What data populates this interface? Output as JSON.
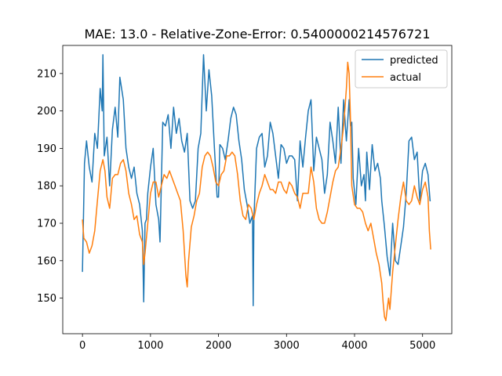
{
  "chart_data": {
    "type": "line",
    "title": "MAE: 13.0 - Relative-Zone-Error: 0.5400000214576721",
    "xlabel": "",
    "ylabel": "",
    "xlim": [
      -290,
      5430
    ],
    "ylim": [
      140.5,
      217.5
    ],
    "x_ticks": [
      0,
      1000,
      2000,
      3000,
      4000,
      5000
    ],
    "y_ticks": [
      150,
      160,
      170,
      180,
      190,
      200,
      210
    ],
    "grid": false,
    "legend_position": "upper-right",
    "series": [
      {
        "name": "predicted",
        "color": "#1f77b4",
        "points": [
          [
            0,
            157
          ],
          [
            30,
            186
          ],
          [
            60,
            192
          ],
          [
            100,
            185
          ],
          [
            140,
            181
          ],
          [
            180,
            194
          ],
          [
            220,
            190
          ],
          [
            260,
            206
          ],
          [
            290,
            200
          ],
          [
            300,
            215
          ],
          [
            320,
            188
          ],
          [
            360,
            193
          ],
          [
            400,
            180
          ],
          [
            440,
            195
          ],
          [
            480,
            201
          ],
          [
            520,
            193
          ],
          [
            550,
            209
          ],
          [
            600,
            203
          ],
          [
            640,
            190
          ],
          [
            680,
            185
          ],
          [
            720,
            182
          ],
          [
            760,
            185
          ],
          [
            800,
            178
          ],
          [
            840,
            175
          ],
          [
            880,
            168
          ],
          [
            900,
            149
          ],
          [
            920,
            170
          ],
          [
            940,
            171
          ],
          [
            960,
            178
          ],
          [
            1000,
            185
          ],
          [
            1040,
            190
          ],
          [
            1080,
            175
          ],
          [
            1120,
            171
          ],
          [
            1140,
            165
          ],
          [
            1180,
            197
          ],
          [
            1220,
            196
          ],
          [
            1260,
            199
          ],
          [
            1300,
            190
          ],
          [
            1340,
            201
          ],
          [
            1380,
            194
          ],
          [
            1420,
            198
          ],
          [
            1460,
            192
          ],
          [
            1500,
            189
          ],
          [
            1540,
            194
          ],
          [
            1580,
            176
          ],
          [
            1620,
            174
          ],
          [
            1660,
            176
          ],
          [
            1700,
            190
          ],
          [
            1740,
            194
          ],
          [
            1780,
            215
          ],
          [
            1820,
            200
          ],
          [
            1860,
            211
          ],
          [
            1900,
            204
          ],
          [
            1940,
            190
          ],
          [
            1980,
            177
          ],
          [
            2000,
            177
          ],
          [
            2020,
            191
          ],
          [
            2060,
            190
          ],
          [
            2100,
            187
          ],
          [
            2140,
            192
          ],
          [
            2180,
            198
          ],
          [
            2220,
            201
          ],
          [
            2260,
            199
          ],
          [
            2300,
            192
          ],
          [
            2340,
            187
          ],
          [
            2380,
            179
          ],
          [
            2420,
            175
          ],
          [
            2460,
            170
          ],
          [
            2500,
            172
          ],
          [
            2510,
            148
          ],
          [
            2520,
            171
          ],
          [
            2560,
            190
          ],
          [
            2600,
            193
          ],
          [
            2640,
            194
          ],
          [
            2680,
            185
          ],
          [
            2720,
            188
          ],
          [
            2760,
            197
          ],
          [
            2800,
            194
          ],
          [
            2840,
            188
          ],
          [
            2880,
            182
          ],
          [
            2920,
            191
          ],
          [
            2960,
            190
          ],
          [
            3000,
            186
          ],
          [
            3040,
            188
          ],
          [
            3080,
            188
          ],
          [
            3120,
            187
          ],
          [
            3160,
            176
          ],
          [
            3200,
            192
          ],
          [
            3240,
            185
          ],
          [
            3280,
            193
          ],
          [
            3320,
            200
          ],
          [
            3360,
            203
          ],
          [
            3400,
            184
          ],
          [
            3440,
            193
          ],
          [
            3480,
            190
          ],
          [
            3520,
            187
          ],
          [
            3560,
            178
          ],
          [
            3600,
            183
          ],
          [
            3640,
            197
          ],
          [
            3680,
            192
          ],
          [
            3720,
            186
          ],
          [
            3760,
            201
          ],
          [
            3800,
            186
          ],
          [
            3840,
            203
          ],
          [
            3880,
            192
          ],
          [
            3920,
            203
          ],
          [
            3940,
            196
          ],
          [
            3960,
            197
          ],
          [
            3980,
            182
          ],
          [
            4020,
            175
          ],
          [
            4060,
            190
          ],
          [
            4100,
            180
          ],
          [
            4140,
            183
          ],
          [
            4160,
            176
          ],
          [
            4180,
            189
          ],
          [
            4220,
            179
          ],
          [
            4260,
            191
          ],
          [
            4300,
            184
          ],
          [
            4340,
            186
          ],
          [
            4380,
            182
          ],
          [
            4400,
            176
          ],
          [
            4440,
            169
          ],
          [
            4480,
            161
          ],
          [
            4520,
            156
          ],
          [
            4560,
            170
          ],
          [
            4600,
            160
          ],
          [
            4640,
            159
          ],
          [
            4680,
            164
          ],
          [
            4720,
            169
          ],
          [
            4760,
            178
          ],
          [
            4800,
            192
          ],
          [
            4840,
            193
          ],
          [
            4880,
            187
          ],
          [
            4920,
            189
          ],
          [
            4960,
            176
          ],
          [
            5000,
            184
          ],
          [
            5040,
            186
          ],
          [
            5080,
            183
          ],
          [
            5110,
            176
          ],
          [
            5120,
            176
          ]
        ]
      },
      {
        "name": "actual",
        "color": "#ff7f0e",
        "points": [
          [
            0,
            171
          ],
          [
            20,
            166
          ],
          [
            60,
            165
          ],
          [
            100,
            162
          ],
          [
            140,
            164
          ],
          [
            180,
            168
          ],
          [
            220,
            176
          ],
          [
            260,
            184
          ],
          [
            300,
            187
          ],
          [
            330,
            184
          ],
          [
            360,
            177
          ],
          [
            400,
            174
          ],
          [
            440,
            182
          ],
          [
            480,
            183
          ],
          [
            520,
            183
          ],
          [
            560,
            186
          ],
          [
            600,
            187
          ],
          [
            640,
            184
          ],
          [
            680,
            178
          ],
          [
            720,
            175
          ],
          [
            760,
            171
          ],
          [
            800,
            172
          ],
          [
            840,
            167
          ],
          [
            880,
            165
          ],
          [
            900,
            159
          ],
          [
            920,
            162
          ],
          [
            960,
            170
          ],
          [
            1000,
            178
          ],
          [
            1040,
            181
          ],
          [
            1080,
            181
          ],
          [
            1120,
            177
          ],
          [
            1160,
            180
          ],
          [
            1200,
            183
          ],
          [
            1240,
            182
          ],
          [
            1280,
            184
          ],
          [
            1320,
            182
          ],
          [
            1360,
            180
          ],
          [
            1400,
            178
          ],
          [
            1440,
            176
          ],
          [
            1480,
            168
          ],
          [
            1520,
            156
          ],
          [
            1540,
            153
          ],
          [
            1560,
            160
          ],
          [
            1600,
            169
          ],
          [
            1640,
            172
          ],
          [
            1680,
            176
          ],
          [
            1720,
            178
          ],
          [
            1760,
            185
          ],
          [
            1800,
            188
          ],
          [
            1840,
            189
          ],
          [
            1880,
            188
          ],
          [
            1920,
            185
          ],
          [
            1960,
            181
          ],
          [
            2000,
            180
          ],
          [
            2040,
            183
          ],
          [
            2080,
            184
          ],
          [
            2120,
            188
          ],
          [
            2160,
            188
          ],
          [
            2200,
            189
          ],
          [
            2240,
            188
          ],
          [
            2280,
            183
          ],
          [
            2320,
            176
          ],
          [
            2360,
            172
          ],
          [
            2400,
            171
          ],
          [
            2440,
            175
          ],
          [
            2480,
            174
          ],
          [
            2520,
            171
          ],
          [
            2560,
            175
          ],
          [
            2600,
            178
          ],
          [
            2640,
            180
          ],
          [
            2680,
            183
          ],
          [
            2720,
            181
          ],
          [
            2760,
            179
          ],
          [
            2800,
            179
          ],
          [
            2840,
            178
          ],
          [
            2880,
            181
          ],
          [
            2920,
            181
          ],
          [
            2960,
            179
          ],
          [
            3000,
            178
          ],
          [
            3040,
            181
          ],
          [
            3080,
            180
          ],
          [
            3120,
            178
          ],
          [
            3160,
            177
          ],
          [
            3200,
            174
          ],
          [
            3240,
            178
          ],
          [
            3280,
            178
          ],
          [
            3320,
            178
          ],
          [
            3360,
            185
          ],
          [
            3400,
            181
          ],
          [
            3440,
            174
          ],
          [
            3480,
            171
          ],
          [
            3520,
            170
          ],
          [
            3560,
            170
          ],
          [
            3600,
            173
          ],
          [
            3640,
            177
          ],
          [
            3680,
            181
          ],
          [
            3720,
            184
          ],
          [
            3760,
            185
          ],
          [
            3800,
            190
          ],
          [
            3840,
            196
          ],
          [
            3880,
            206
          ],
          [
            3900,
            213
          ],
          [
            3920,
            210
          ],
          [
            3940,
            198
          ],
          [
            3960,
            180
          ],
          [
            4000,
            175
          ],
          [
            4040,
            174
          ],
          [
            4080,
            174
          ],
          [
            4120,
            173
          ],
          [
            4160,
            170
          ],
          [
            4200,
            168
          ],
          [
            4240,
            170
          ],
          [
            4280,
            166
          ],
          [
            4320,
            162
          ],
          [
            4360,
            159
          ],
          [
            4400,
            154
          ],
          [
            4420,
            149
          ],
          [
            4440,
            145
          ],
          [
            4460,
            144
          ],
          [
            4480,
            147
          ],
          [
            4500,
            150
          ],
          [
            4520,
            147
          ],
          [
            4560,
            157
          ],
          [
            4600,
            164
          ],
          [
            4640,
            171
          ],
          [
            4680,
            177
          ],
          [
            4720,
            181
          ],
          [
            4760,
            176
          ],
          [
            4800,
            175
          ],
          [
            4840,
            176
          ],
          [
            4880,
            180
          ],
          [
            4920,
            177
          ],
          [
            4960,
            175
          ],
          [
            5000,
            179
          ],
          [
            5040,
            181
          ],
          [
            5080,
            177
          ],
          [
            5100,
            168
          ],
          [
            5120,
            163
          ]
        ]
      }
    ]
  }
}
